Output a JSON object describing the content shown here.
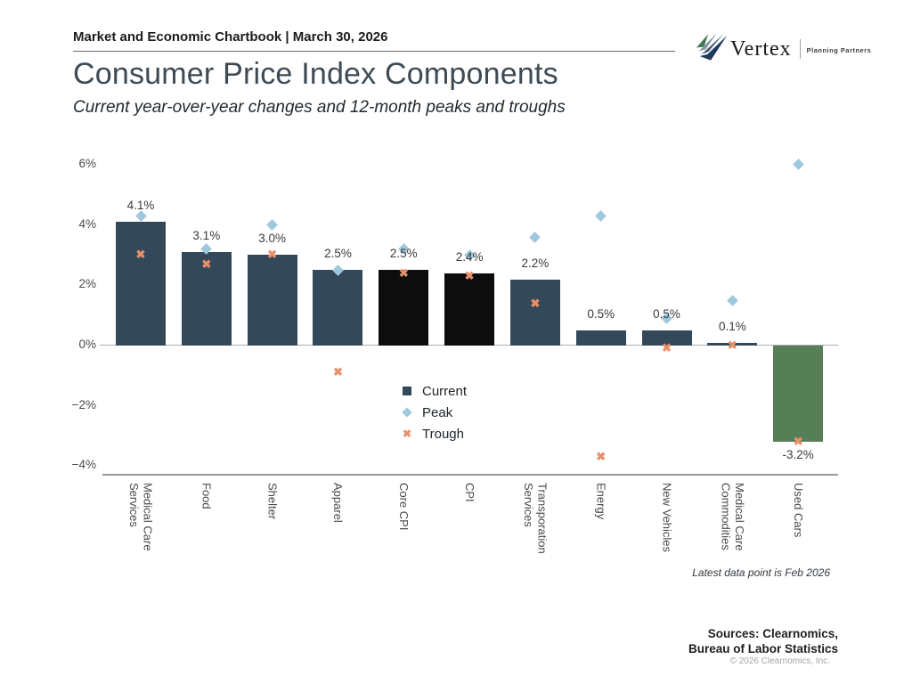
{
  "header": {
    "chartbook": "Market and Economic Chartbook | March 30, 2026"
  },
  "logo": {
    "name": "Vertex",
    "tagline": "Planning Partners"
  },
  "title": "Consumer Price Index Components",
  "subtitle": "Current year-over-year changes and 12-month peaks and troughs",
  "chart_data": {
    "type": "bar",
    "title": "Consumer Price Index Components",
    "subtitle": "Current year-over-year changes and 12-month peaks and troughs",
    "unit": "%",
    "grid": false,
    "ylim": [
      -4.3,
      6.5
    ],
    "yticks": [
      {
        "v": 6,
        "label": "6%"
      },
      {
        "v": 4,
        "label": "4%"
      },
      {
        "v": 2,
        "label": "2%"
      },
      {
        "v": 0,
        "label": "0%"
      },
      {
        "v": -2,
        "label": "−2%"
      },
      {
        "v": -4,
        "label": "−4%"
      }
    ],
    "categories": [
      "Medical Care Services",
      "Food",
      "Shelter",
      "Apparel",
      "Core CPI",
      "CPI",
      "Transporation Services",
      "Energy",
      "New Vehicles",
      "Medical Care Commodities",
      "Used Cars"
    ],
    "series": [
      {
        "name": "Current",
        "type": "bar",
        "marker": "square",
        "values": [
          4.1,
          3.1,
          3.0,
          2.5,
          2.5,
          2.4,
          2.2,
          0.5,
          0.5,
          0.1,
          -3.2
        ]
      },
      {
        "name": "Peak",
        "type": "scatter",
        "marker": "diamond",
        "values": [
          4.3,
          3.2,
          4.0,
          2.5,
          3.2,
          3.0,
          3.6,
          4.3,
          0.9,
          1.5,
          6.0
        ]
      },
      {
        "name": "Trough",
        "type": "scatter",
        "marker": "x",
        "values": [
          3.0,
          2.7,
          3.0,
          -0.9,
          2.4,
          2.3,
          1.4,
          -3.7,
          -0.1,
          0.0,
          -3.2
        ]
      }
    ],
    "bar_value_labels": [
      "4.1%",
      "3.1%",
      "3.0%",
      "2.5%",
      "2.5%",
      "2.4%",
      "2.2%",
      "0.5%",
      "0.5%",
      "0.1%",
      "-3.2%"
    ],
    "bar_colors": [
      "#33495a",
      "#33495a",
      "#33495a",
      "#33495a",
      "#0d0d0d",
      "#0d0d0d",
      "#33495a",
      "#33495a",
      "#33495a",
      "#33495a",
      "#567f57"
    ],
    "legend_position": "center, below zero line"
  },
  "legend": [
    {
      "label": "Current",
      "marker": "square",
      "color": "#33495a"
    },
    {
      "label": "Peak",
      "marker": "diamond",
      "color": "#9fc8de"
    },
    {
      "label": "Trough",
      "marker": "x",
      "color": "#e8906a"
    }
  ],
  "colors": {
    "bar_default": "#33495a",
    "bar_highlight": "#0d0d0d",
    "bar_negative": "#567f57",
    "peak_marker": "#9fc8de",
    "trough_marker": "#e8906a",
    "title_text": "#3e4a54"
  },
  "footnote": "Latest data point is Feb 2026",
  "sources": {
    "line1": "Sources: Clearnomics,",
    "line2": "Bureau of Labor Statistics",
    "copyright": "© 2026 Clearnomics, Inc."
  }
}
